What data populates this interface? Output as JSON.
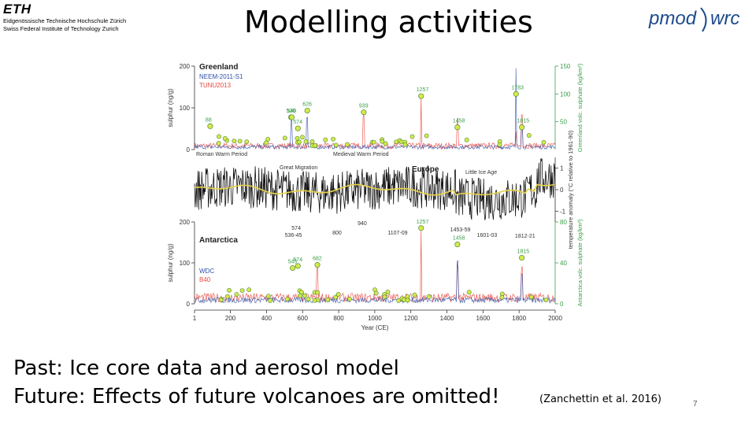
{
  "header": {
    "eth_logo": {
      "word": "ETH",
      "line1": "Eidgenössische Technische Hochschule Zürich",
      "line2": "Swiss Federal Institute of Technology Zurich"
    },
    "title": "Modelling activities",
    "pmod_logo": {
      "part1": "pmod",
      "part2": "wrc"
    }
  },
  "body": {
    "line1": "Past: Ice core data and aerosol model",
    "line2": "Future: Effects of future volcanoes are omitted!",
    "citation": "(Zanchettin et al. 2016)",
    "page_number": "7"
  },
  "colors": {
    "blue_series": "#2f4fa8",
    "red_series": "#e8463c",
    "marker_fill": "#d7e84a",
    "marker_stroke": "#4a8c3a",
    "smooth_line": "#e8d24a",
    "green_axis": "#3aa04a"
  },
  "chart_data": [
    {
      "type": "line",
      "panel": "top",
      "title": "Greenland",
      "series": [
        {
          "name": "NEEM-2011-S1",
          "color": "#2f4fa8"
        },
        {
          "name": "TUNU2013",
          "color": "#e8463c"
        }
      ],
      "ylabel": "sulphur (ng/g)",
      "ylabel_right": "Greenland volc. sulphate (kg/km²)",
      "yticks": [
        "0",
        "100",
        "200"
      ],
      "ylim": [
        0,
        200
      ],
      "yticks_right": [
        "50",
        "100",
        "150"
      ],
      "ylim_right": [
        0,
        150
      ],
      "xlim": [
        1,
        2000
      ],
      "annotations": [
        "88",
        "536",
        "540",
        "626",
        "574",
        "939",
        "1257",
        "1458",
        "1783",
        "1815"
      ],
      "volcanic_events": [
        {
          "x": 88,
          "y": 42
        },
        {
          "x": 536,
          "y": 58
        },
        {
          "x": 540,
          "y": 58
        },
        {
          "x": 626,
          "y": 70
        },
        {
          "x": 574,
          "y": 38
        },
        {
          "x": 939,
          "y": 67
        },
        {
          "x": 1257,
          "y": 96
        },
        {
          "x": 1458,
          "y": 40
        },
        {
          "x": 1783,
          "y": 100
        },
        {
          "x": 1815,
          "y": 40
        }
      ],
      "periods": [
        "Roman Warm Period",
        "Medieval Warm Period"
      ]
    },
    {
      "type": "line",
      "panel": "middle",
      "title": "Europe",
      "ylabel_right": "temperature anomaly (°C relative to 1961-90)",
      "yticks_right": [
        "-1",
        "0",
        "1"
      ],
      "ylim_right": [
        -1.5,
        1.5
      ],
      "xlim": [
        1,
        2000
      ],
      "periods": [
        "Great Migration",
        "Little Ice Age"
      ],
      "annotations": [
        "574",
        "536-45",
        "800",
        "940",
        "1107-09",
        "1453-59",
        "1601-03",
        "1812-21"
      ]
    },
    {
      "type": "line",
      "panel": "bottom",
      "title": "Antarctica",
      "series": [
        {
          "name": "WDC",
          "color": "#2f4fa8"
        },
        {
          "name": "B40",
          "color": "#e8463c"
        }
      ],
      "ylabel": "sulphur (ng/g)",
      "ylabel_right": "Antarctica volc. sulphate (kg/km²)",
      "yticks": [
        "0",
        "100",
        "200"
      ],
      "ylim": [
        0,
        200
      ],
      "yticks_right": [
        "0",
        "40",
        "80"
      ],
      "ylim_right": [
        0,
        80
      ],
      "xlabel": "Year (CE)",
      "xticks": [
        "1",
        "200",
        "400",
        "600",
        "800",
        "1000",
        "1200",
        "1400",
        "1600",
        "1800",
        "2000"
      ],
      "xlim": [
        1,
        2000
      ],
      "annotations": [
        "1257",
        "545",
        "574",
        "682",
        "1458",
        "1815"
      ],
      "volcanic_events": [
        {
          "x": 1257,
          "y": 74
        },
        {
          "x": 545,
          "y": 35
        },
        {
          "x": 574,
          "y": 37
        },
        {
          "x": 682,
          "y": 38
        },
        {
          "x": 1458,
          "y": 58
        },
        {
          "x": 1815,
          "y": 45
        }
      ]
    }
  ]
}
